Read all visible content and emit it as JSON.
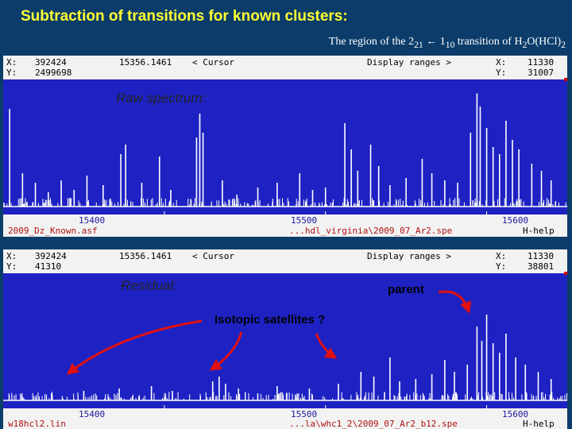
{
  "title": "Subtraction of transitions for known clusters:",
  "subtitle": {
    "prefix": "The region of the 2",
    "sub1": "21",
    "arrow": " ← 1",
    "sub2": "10",
    "mid": " transition of H",
    "sub3": "2",
    "mid2": "O(HCl)",
    "sub4": "2"
  },
  "panel_top": {
    "x_label": "X:",
    "x_value": "392424",
    "y_label": "Y:",
    "y_value": "2499698",
    "cursor_freq": "15356.1461",
    "cursor_label": "<  Cursor",
    "display_range": "Display ranges  >",
    "range_x_label": "X:",
    "range_x_value": "11330",
    "range_y_label": "Y:",
    "range_y_value": "31007",
    "label": "Raw spectrum:",
    "ticks": [
      "15400",
      "15500",
      "15600"
    ],
    "file_left": "2009_Dz_Known.asf",
    "file_right": "...hdl_virginia\\2009_07_Ar2.spe",
    "help": "H-help"
  },
  "panel_bottom": {
    "x_label": "X:",
    "x_value": "392424",
    "y_label": "Y:",
    "y_value": "41310",
    "cursor_freq": "15356.1461",
    "cursor_label": "<  Cursor",
    "display_range": "Display ranges  >",
    "range_x_label": "X:",
    "range_x_value": "11330",
    "range_y_label": "Y:",
    "range_y_value": "38801",
    "label": "Residual:",
    "annotation_parent": "parent",
    "annotation_isotopic": "Isotopic satellites ?",
    "ticks": [
      "15400",
      "15500",
      "15600"
    ],
    "file_left": "w18hcl2.lin",
    "file_right": "...la\\whc1_2\\2009_07_Ar2_b12.spe",
    "help": "H-help"
  },
  "colors": {
    "background": "#0c3d6a",
    "title": "#ffff33",
    "plot": "#1e22c2",
    "spectrum": "#ffffff",
    "arrow": "#e01010"
  },
  "chart_data": [
    {
      "type": "line",
      "name_in_image": "Raw spectrum:",
      "xlabel": "",
      "ylabel": "",
      "x_ticks": [
        15400,
        15500,
        15600
      ],
      "xlim": [
        15300,
        15650
      ],
      "peaks": [
        {
          "x": 15304,
          "h": 0.82
        },
        {
          "x": 15312,
          "h": 0.28
        },
        {
          "x": 15320,
          "h": 0.2
        },
        {
          "x": 15328,
          "h": 0.12
        },
        {
          "x": 15336,
          "h": 0.22
        },
        {
          "x": 15344,
          "h": 0.14
        },
        {
          "x": 15352,
          "h": 0.26
        },
        {
          "x": 15362,
          "h": 0.18
        },
        {
          "x": 15373,
          "h": 0.44
        },
        {
          "x": 15376,
          "h": 0.52
        },
        {
          "x": 15386,
          "h": 0.2
        },
        {
          "x": 15397,
          "h": 0.42
        },
        {
          "x": 15404,
          "h": 0.14
        },
        {
          "x": 15420,
          "h": 0.58
        },
        {
          "x": 15422,
          "h": 0.78
        },
        {
          "x": 15424,
          "h": 0.62
        },
        {
          "x": 15436,
          "h": 0.22
        },
        {
          "x": 15445,
          "h": 0.1
        },
        {
          "x": 15458,
          "h": 0.16
        },
        {
          "x": 15470,
          "h": 0.2
        },
        {
          "x": 15484,
          "h": 0.28
        },
        {
          "x": 15492,
          "h": 0.14
        },
        {
          "x": 15500,
          "h": 0.16
        },
        {
          "x": 15512,
          "h": 0.7
        },
        {
          "x": 15516,
          "h": 0.48
        },
        {
          "x": 15520,
          "h": 0.3
        },
        {
          "x": 15528,
          "h": 0.52
        },
        {
          "x": 15533,
          "h": 0.34
        },
        {
          "x": 15540,
          "h": 0.18
        },
        {
          "x": 15550,
          "h": 0.24
        },
        {
          "x": 15560,
          "h": 0.4
        },
        {
          "x": 15566,
          "h": 0.28
        },
        {
          "x": 15574,
          "h": 0.22
        },
        {
          "x": 15582,
          "h": 0.2
        },
        {
          "x": 15590,
          "h": 0.62
        },
        {
          "x": 15594,
          "h": 0.95
        },
        {
          "x": 15596,
          "h": 0.84
        },
        {
          "x": 15600,
          "h": 0.66
        },
        {
          "x": 15604,
          "h": 0.5
        },
        {
          "x": 15608,
          "h": 0.44
        },
        {
          "x": 15612,
          "h": 0.72
        },
        {
          "x": 15616,
          "h": 0.56
        },
        {
          "x": 15620,
          "h": 0.48
        },
        {
          "x": 15628,
          "h": 0.36
        },
        {
          "x": 15634,
          "h": 0.3
        },
        {
          "x": 15640,
          "h": 0.22
        }
      ]
    },
    {
      "type": "line",
      "name_in_image": "Residual:",
      "xlabel": "",
      "ylabel": "",
      "x_ticks": [
        15400,
        15500,
        15600
      ],
      "xlim": [
        15300,
        15650
      ],
      "peaks": [
        {
          "x": 15330,
          "h": 0.06
        },
        {
          "x": 15350,
          "h": 0.08
        },
        {
          "x": 15372,
          "h": 0.1
        },
        {
          "x": 15392,
          "h": 0.12
        },
        {
          "x": 15405,
          "h": 0.08
        },
        {
          "x": 15430,
          "h": 0.16
        },
        {
          "x": 15434,
          "h": 0.2
        },
        {
          "x": 15438,
          "h": 0.14
        },
        {
          "x": 15446,
          "h": 0.1
        },
        {
          "x": 15470,
          "h": 0.12
        },
        {
          "x": 15490,
          "h": 0.1
        },
        {
          "x": 15508,
          "h": 0.14
        },
        {
          "x": 15522,
          "h": 0.24
        },
        {
          "x": 15530,
          "h": 0.2
        },
        {
          "x": 15540,
          "h": 0.36
        },
        {
          "x": 15546,
          "h": 0.16
        },
        {
          "x": 15556,
          "h": 0.18
        },
        {
          "x": 15566,
          "h": 0.22
        },
        {
          "x": 15574,
          "h": 0.34
        },
        {
          "x": 15580,
          "h": 0.24
        },
        {
          "x": 15588,
          "h": 0.3
        },
        {
          "x": 15594,
          "h": 0.62
        },
        {
          "x": 15597,
          "h": 0.5
        },
        {
          "x": 15600,
          "h": 0.72
        },
        {
          "x": 15604,
          "h": 0.48
        },
        {
          "x": 15608,
          "h": 0.4
        },
        {
          "x": 15612,
          "h": 0.56
        },
        {
          "x": 15618,
          "h": 0.36
        },
        {
          "x": 15624,
          "h": 0.3
        },
        {
          "x": 15632,
          "h": 0.24
        },
        {
          "x": 15640,
          "h": 0.18
        }
      ]
    }
  ]
}
